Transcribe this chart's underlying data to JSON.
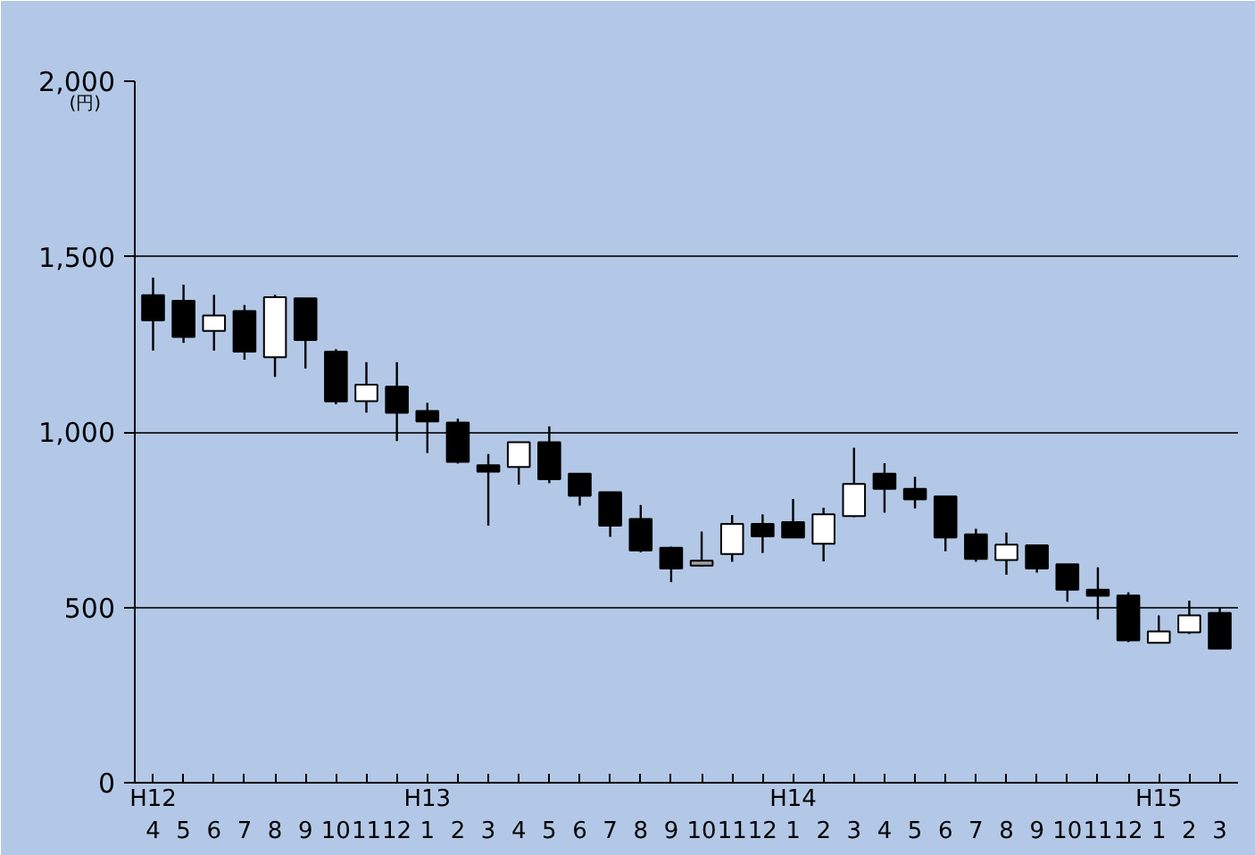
{
  "chart_data": {
    "type": "candlestick",
    "ylabel": "(円)",
    "categories": [
      "H12\n4",
      "5",
      "6",
      "7",
      "8",
      "9",
      "10",
      "11",
      "12",
      "H13\n1",
      "2",
      "3",
      "4",
      "5",
      "6",
      "7",
      "8",
      "9",
      "10",
      "11",
      "12",
      "H14\n1",
      "2",
      "3",
      "4",
      "5",
      "6",
      "7",
      "8",
      "9",
      "10",
      "11",
      "12",
      "H15\n1",
      "2",
      "3"
    ],
    "ohlc": [
      [
        1390,
        1440,
        1232,
        1318
      ],
      [
        1374,
        1420,
        1254,
        1271
      ],
      [
        1288,
        1391,
        1232,
        1332
      ],
      [
        1345,
        1362,
        1206,
        1229
      ],
      [
        1213,
        1391,
        1157,
        1384
      ],
      [
        1381,
        1381,
        1181,
        1262
      ],
      [
        1229,
        1236,
        1079,
        1087
      ],
      [
        1088,
        1199,
        1055,
        1135
      ],
      [
        1129,
        1199,
        974,
        1055
      ],
      [
        1060,
        1083,
        940,
        1030
      ],
      [
        1027,
        1038,
        910,
        915
      ],
      [
        905,
        937,
        733,
        887
      ],
      [
        900,
        971,
        850,
        971
      ],
      [
        971,
        1016,
        854,
        865
      ],
      [
        881,
        881,
        790,
        818
      ],
      [
        828,
        828,
        701,
        733
      ],
      [
        752,
        792,
        657,
        662
      ],
      [
        670,
        673,
        572,
        611
      ],
      [
        619,
        716,
        616,
        633
      ],
      [
        652,
        763,
        630,
        738
      ],
      [
        738,
        765,
        655,
        702
      ],
      [
        743,
        809,
        699,
        699
      ],
      [
        681,
        784,
        631,
        765
      ],
      [
        760,
        955,
        757,
        852
      ],
      [
        881,
        911,
        770,
        838
      ],
      [
        838,
        872,
        782,
        808
      ],
      [
        816,
        816,
        660,
        699
      ],
      [
        708,
        724,
        630,
        638
      ],
      [
        635,
        713,
        593,
        679
      ],
      [
        677,
        677,
        599,
        611
      ],
      [
        623,
        623,
        516,
        550
      ],
      [
        550,
        614,
        465,
        533
      ],
      [
        534,
        543,
        401,
        406
      ],
      [
        399,
        477,
        399,
        431
      ],
      [
        429,
        519,
        424,
        477
      ],
      [
        484,
        499,
        382,
        382
      ]
    ],
    "colors": [
      "#000000",
      "#000000",
      "#ffffff",
      "#000000",
      "#ffffff",
      "#000000",
      "#000000",
      "#ffffff",
      "#000000",
      "#000000",
      "#000000",
      "#000000",
      "#ffffff",
      "#000000",
      "#000000",
      "#000000",
      "#000000",
      "#000000",
      "#a0a0a0",
      "#ffffff",
      "#000000",
      "#000000",
      "#ffffff",
      "#ffffff",
      "#000000",
      "#000000",
      "#000000",
      "#000000",
      "#ffffff",
      "#000000",
      "#000000",
      "#000000",
      "#000000",
      "#ffffff",
      "#ffffff",
      "#000000"
    ],
    "ylim": [
      0,
      2000
    ],
    "yticks": [
      0,
      {
        "value": 500,
        "label": "500"
      },
      {
        "value": 1000,
        "label": "1,000"
      },
      {
        "value": 1500,
        "label": "1,500"
      },
      {
        "value": 2000,
        "label": "2,000"
      }
    ],
    "grid": "y"
  }
}
